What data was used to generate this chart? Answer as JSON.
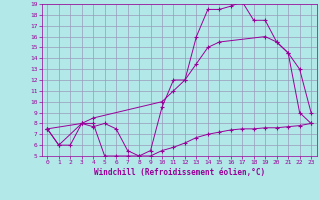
{
  "background_color": "#b2e8e8",
  "grid_color": "#9999bb",
  "line_color": "#990099",
  "marker": "+",
  "xlabel": "Windchill (Refroidissement éolien,°C)",
  "xlim": [
    -0.5,
    23.5
  ],
  "ylim": [
    5,
    19
  ],
  "xticks": [
    0,
    1,
    2,
    3,
    4,
    5,
    6,
    7,
    8,
    9,
    10,
    11,
    12,
    13,
    14,
    15,
    16,
    17,
    18,
    19,
    20,
    21,
    22,
    23
  ],
  "yticks": [
    5,
    6,
    7,
    8,
    9,
    10,
    11,
    12,
    13,
    14,
    15,
    16,
    17,
    18,
    19
  ],
  "series": [
    {
      "x": [
        0,
        1,
        2,
        3,
        4,
        5,
        6,
        7,
        8,
        9,
        10,
        11,
        12,
        13,
        14,
        15,
        16,
        17,
        18,
        19,
        20,
        21,
        22,
        23
      ],
      "y": [
        7.5,
        6,
        6,
        8,
        7.7,
        8,
        7.5,
        5.5,
        5,
        5,
        5.5,
        5.8,
        6.2,
        6.7,
        7.0,
        7.2,
        7.4,
        7.5,
        7.5,
        7.6,
        7.6,
        7.7,
        7.8,
        8.0
      ]
    },
    {
      "x": [
        0,
        1,
        3,
        4,
        5,
        6,
        7,
        8,
        9,
        10,
        11,
        12,
        13,
        14,
        15,
        16,
        17,
        18,
        19,
        20,
        21,
        22,
        23
      ],
      "y": [
        7.5,
        6,
        8,
        8,
        5,
        5,
        5,
        5,
        5.5,
        9.5,
        12,
        12,
        16,
        18.5,
        18.5,
        18.8,
        19.2,
        17.5,
        17.5,
        15.5,
        14.5,
        13,
        9
      ]
    },
    {
      "x": [
        0,
        3,
        4,
        10,
        11,
        12,
        13,
        14,
        15,
        19,
        20,
        21,
        22,
        23
      ],
      "y": [
        7.5,
        8,
        8.5,
        10,
        11,
        12,
        13.5,
        15,
        15.5,
        16,
        15.5,
        14.5,
        9,
        8
      ]
    }
  ]
}
